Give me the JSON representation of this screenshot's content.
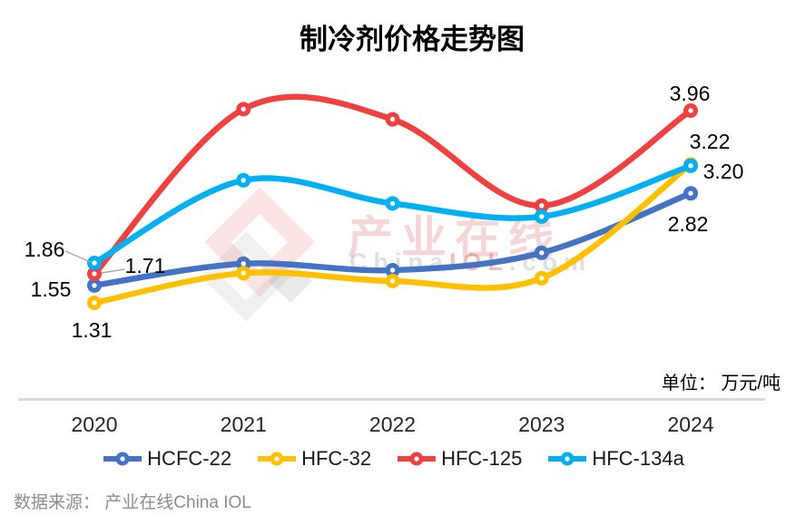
{
  "title": "制冷剂价格走势图",
  "unit_label": "单位： 万元/吨",
  "source_label": "数据来源： 产业在线China IOL",
  "watermark": {
    "logo_icon": "china-iol-diamond-logo",
    "cn_text": "产业在线",
    "en_text_gray": "China",
    "en_text_red": "IOL",
    "en_text_tail": ".com"
  },
  "chart_data": {
    "type": "line",
    "smooth": true,
    "grid": false,
    "y_axis_visible": false,
    "legend_position": "bottom",
    "ylim": [
      1.0,
      4.35
    ],
    "categories": [
      "2020",
      "2021",
      "2022",
      "2023",
      "2024"
    ],
    "series": [
      {
        "name": "HCFC-22",
        "color": "#4472C4",
        "values": [
          1.55,
          1.85,
          1.76,
          2.0,
          2.82
        ]
      },
      {
        "name": "HFC-32",
        "color": "#FFC000",
        "values": [
          1.31,
          1.72,
          1.61,
          1.65,
          3.22
        ]
      },
      {
        "name": "HFC-125",
        "color": "#F04040",
        "values": [
          1.71,
          3.98,
          3.84,
          2.65,
          3.96
        ]
      },
      {
        "name": "HFC-134a",
        "color": "#00B0F0",
        "values": [
          1.86,
          3.0,
          2.68,
          2.5,
          3.2
        ]
      }
    ],
    "labeled_points": [
      {
        "series": "HFC-134a",
        "index": 0,
        "text": "1.86"
      },
      {
        "series": "HFC-125",
        "index": 0,
        "text": "1.71"
      },
      {
        "series": "HCFC-22",
        "index": 0,
        "text": "1.55"
      },
      {
        "series": "HFC-32",
        "index": 0,
        "text": "1.31"
      },
      {
        "series": "HFC-125",
        "index": 4,
        "text": "3.96"
      },
      {
        "series": "HFC-32",
        "index": 4,
        "text": "3.22"
      },
      {
        "series": "HFC-134a",
        "index": 4,
        "text": "3.20"
      },
      {
        "series": "HCFC-22",
        "index": 4,
        "text": "2.82"
      }
    ],
    "axis_line_color": "#D9D9D9"
  }
}
